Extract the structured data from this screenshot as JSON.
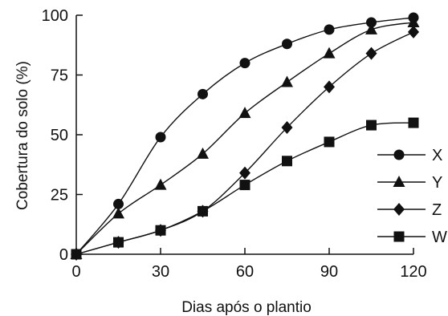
{
  "chart_data": {
    "type": "line",
    "title": "",
    "xlabel": "Dias após o plantio",
    "ylabel": "Cobertura do solo (%)",
    "xlim": [
      0,
      120
    ],
    "ylim": [
      0,
      100
    ],
    "xticks": [
      0,
      30,
      60,
      90,
      120
    ],
    "yticks": [
      0,
      25,
      50,
      75,
      100
    ],
    "grid": false,
    "legend_position": "right",
    "series": [
      {
        "name": "X",
        "marker": "circle",
        "x": [
          0,
          15,
          30,
          45,
          60,
          75,
          90,
          105,
          120
        ],
        "y": [
          0,
          21,
          49,
          67,
          80,
          88,
          94,
          97,
          99
        ]
      },
      {
        "name": "Y",
        "marker": "triangle",
        "x": [
          0,
          15,
          30,
          45,
          60,
          75,
          90,
          105,
          120
        ],
        "y": [
          0,
          17,
          29,
          42,
          59,
          72,
          84,
          94,
          97
        ]
      },
      {
        "name": "Z",
        "marker": "diamond",
        "x": [
          0,
          15,
          30,
          45,
          60,
          75,
          90,
          105,
          120
        ],
        "y": [
          0,
          5,
          10,
          18,
          34,
          53,
          70,
          84,
          93
        ]
      },
      {
        "name": "W",
        "marker": "square",
        "x": [
          0,
          15,
          30,
          45,
          60,
          75,
          90,
          105,
          120
        ],
        "y": [
          0,
          5,
          10,
          18,
          29,
          39,
          47,
          54,
          55
        ]
      }
    ]
  },
  "colors": {
    "ink": "#111111",
    "background": "#ffffff"
  }
}
